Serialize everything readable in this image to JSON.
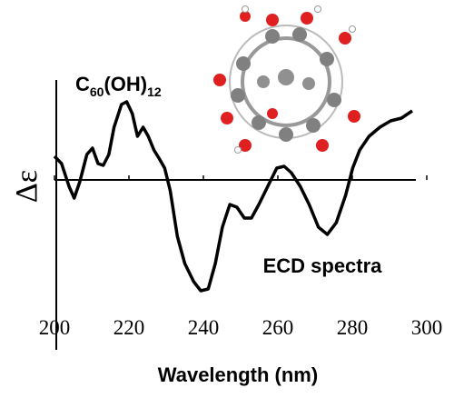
{
  "chart_data": {
    "type": "line",
    "y_label": "Δε",
    "x_label": "Wavelength (nm)",
    "molecule_label": {
      "parts": [
        "C",
        "60",
        "(OH)",
        "12"
      ]
    },
    "annotation": "ECD spectra",
    "xlim": [
      200,
      300
    ],
    "xticks": [
      200,
      220,
      240,
      260,
      280,
      300
    ],
    "ylim": [
      -18,
      11
    ],
    "color": "#000000",
    "x": [
      200,
      201.9,
      203.9,
      205.3,
      206.8,
      208.7,
      210.2,
      211.7,
      213.1,
      214.6,
      216.0,
      218.0,
      219.4,
      220.9,
      222.3,
      223.8,
      225.2,
      226.7,
      228.2,
      229.6,
      231.1,
      233.0,
      235.0,
      237.4,
      239.3,
      241.3,
      243.2,
      245.1,
      247.1,
      249.0,
      251.0,
      252.9,
      254.9,
      257.3,
      259.7,
      261.7,
      263.6,
      266.0,
      268.4,
      270.9,
      273.3,
      275.7,
      278.2,
      280.1,
      282.0,
      284.5,
      287.4,
      290.3,
      293.2,
      296.1
    ],
    "values": [
      2.6,
      1.8,
      -0.7,
      -2.0,
      -0.2,
      2.8,
      3.5,
      1.8,
      1.6,
      2.8,
      5.8,
      8.3,
      8.6,
      7.3,
      4.8,
      5.8,
      4.8,
      3.3,
      2.3,
      1.3,
      -1.2,
      -6.2,
      -9.2,
      -11.2,
      -12.2,
      -12.0,
      -9.2,
      -5.2,
      -2.7,
      -3.0,
      -4.2,
      -4.2,
      -2.7,
      -0.7,
      1.3,
      1.5,
      0.8,
      -0.7,
      -2.7,
      -5.2,
      -6.0,
      -4.7,
      -1.7,
      1.3,
      3.3,
      4.8,
      5.8,
      6.5,
      6.8,
      7.6
    ]
  }
}
